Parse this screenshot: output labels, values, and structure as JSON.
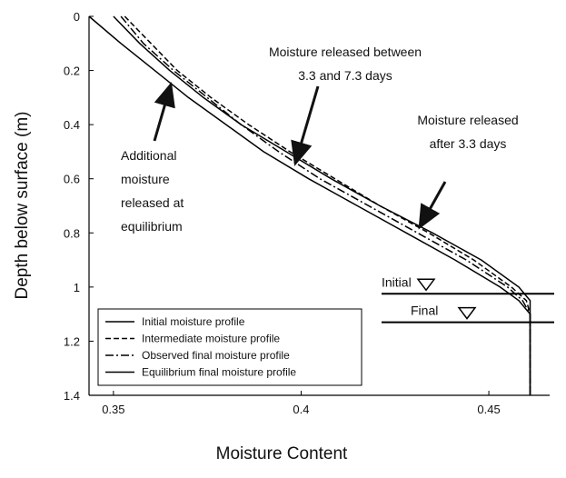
{
  "chart_data": {
    "type": "line",
    "x_label": "Moisture Content",
    "y_label": "Depth below surface (m)",
    "xlim": [
      0.3435,
      0.4662
    ],
    "xticks": [
      0.35,
      0.4,
      0.45
    ],
    "ylim": [
      0,
      1.4
    ],
    "yticks": [
      0,
      0.2,
      0.4,
      0.6,
      0.8,
      1,
      1.2,
      1.4
    ],
    "y_inverted": true,
    "legend": "lower left",
    "y": [
      0,
      0.1,
      0.2,
      0.3,
      0.4,
      0.5,
      0.6,
      0.7,
      0.8,
      0.9,
      1.0,
      1.05,
      1.1,
      1.4
    ],
    "series": [
      {
        "name": "Initial moisture profile",
        "color": "#000000",
        "line_style": "solid",
        "x": [
          0.35,
          0.357,
          0.365,
          0.374,
          0.384,
          0.396,
          0.408,
          0.421,
          0.435,
          0.448,
          0.458,
          0.461,
          0.461,
          0.461
        ]
      },
      {
        "name": "Intermediate moisture profile",
        "color": "#000000",
        "line_style": "dashed",
        "x": [
          0.353,
          0.36,
          0.367,
          0.376,
          0.386,
          0.397,
          0.409,
          0.421,
          0.434,
          0.446,
          0.456,
          0.46,
          0.461,
          0.461
        ]
      },
      {
        "name": "Observed final moisture profile",
        "color": "#000000",
        "line_style": "dashdot",
        "x": [
          0.352,
          0.358,
          0.366,
          0.375,
          0.384,
          0.394,
          0.405,
          0.418,
          0.431,
          0.444,
          0.455,
          0.459,
          0.461,
          0.461
        ]
      },
      {
        "name": "Equilibrium final moisture profile",
        "color": "#000000",
        "line_style": "solid",
        "x": [
          0.3435,
          0.352,
          0.361,
          0.37,
          0.38,
          0.39,
          0.402,
          0.415,
          0.428,
          0.441,
          0.453,
          0.458,
          0.461,
          0.461
        ]
      }
    ],
    "water_tables": [
      {
        "label": "Initial",
        "depth": 1.025
      },
      {
        "label": "Final",
        "depth": 1.13
      }
    ],
    "annotations": [
      {
        "lines": [
          "Moisture released  between",
          "3.3 and 7.3 days"
        ]
      },
      {
        "lines": [
          "Moisture released",
          "after 3.3 days"
        ]
      },
      {
        "lines": [
          "Additional",
          "moisture",
          "released at",
          "equilibrium"
        ]
      }
    ]
  }
}
